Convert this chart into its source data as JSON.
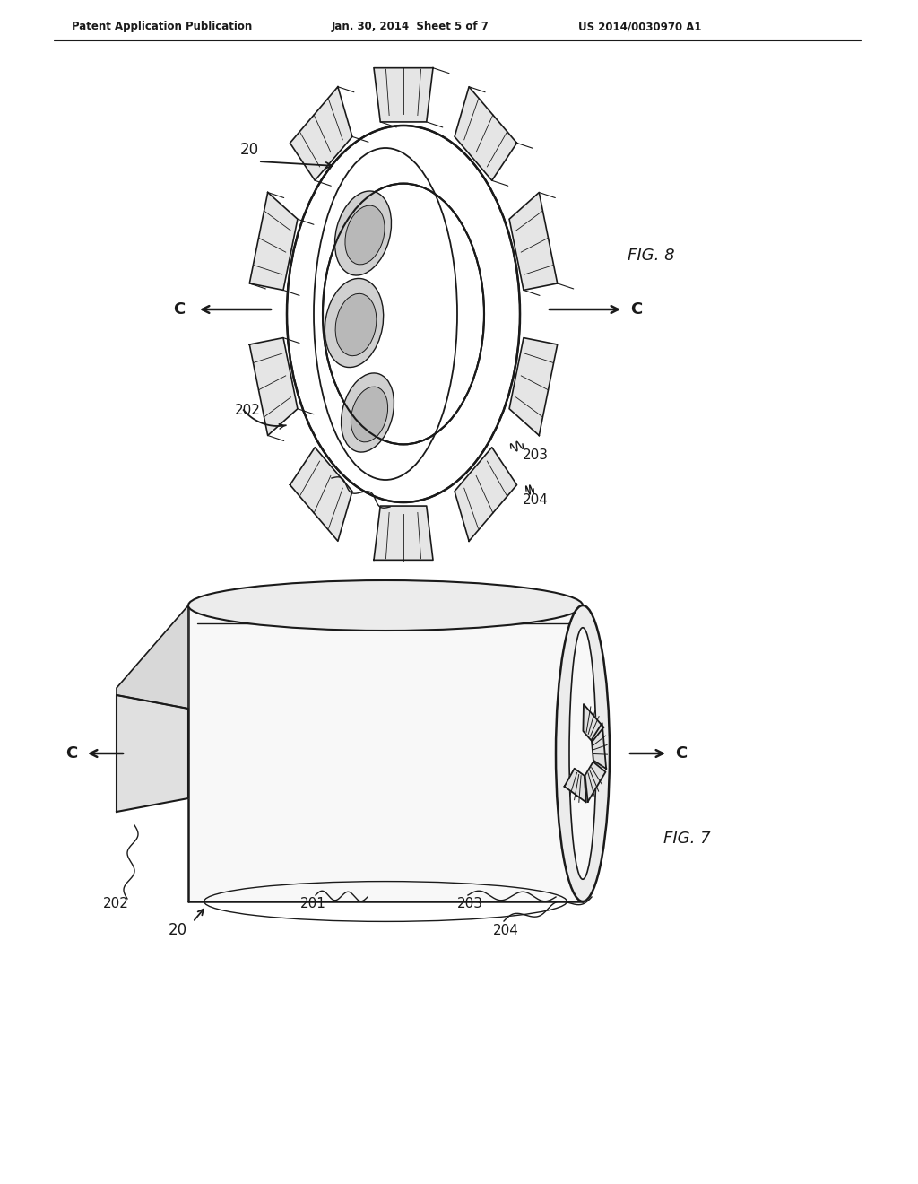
{
  "background_color": "#ffffff",
  "header_left": "Patent Application Publication",
  "header_mid": "Jan. 30, 2014  Sheet 5 of 7",
  "header_right": "US 2014/0030970 A1",
  "fig8_label": "FIG. 8",
  "fig7_label": "FIG. 7",
  "line_color": "#1a1a1a",
  "text_color": "#1a1a1a",
  "light_gray": "#e8e8e8",
  "mid_gray": "#c8c8c8",
  "dark_gray": "#aaaaaa"
}
